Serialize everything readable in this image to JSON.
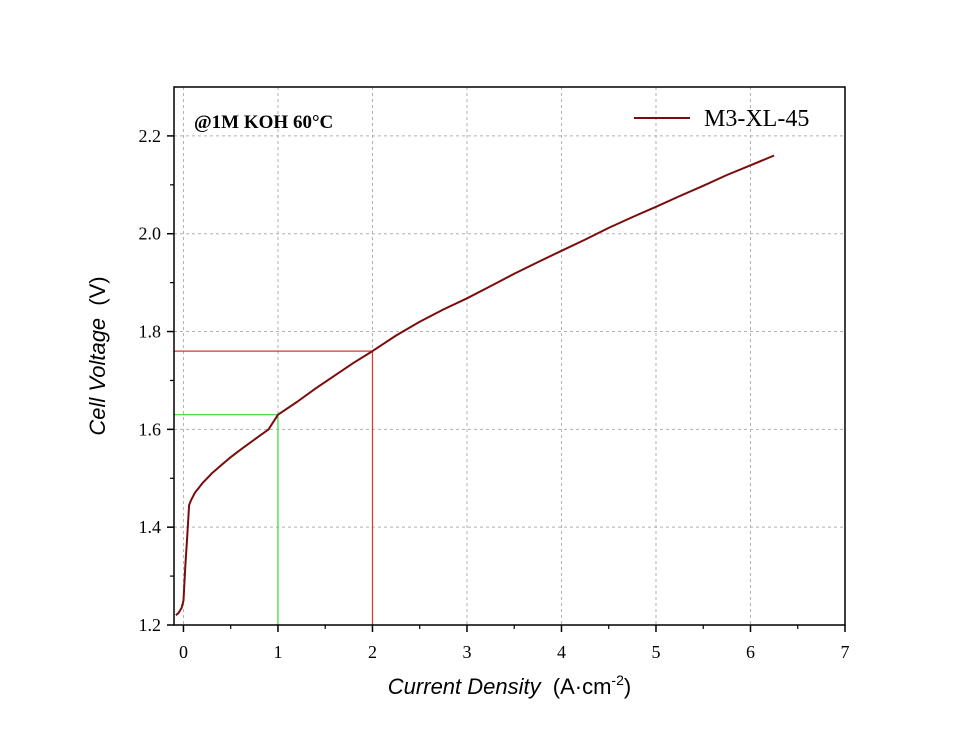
{
  "chart_data": {
    "type": "line",
    "xlabel_italic": "Current Density",
    "xlabel_unit_prefix": "(A·cm",
    "xlabel_unit_sup": "-2",
    "xlabel_unit_suffix": ")",
    "ylabel_italic": "Cell Voltage",
    "ylabel_unit": "(V)",
    "xlim": [
      -0.1,
      7
    ],
    "ylim": [
      1.2,
      2.3
    ],
    "xticks": [
      0,
      1,
      2,
      3,
      4,
      5,
      6,
      7
    ],
    "yticks": [
      1.2,
      1.4,
      1.6,
      1.8,
      2.0,
      2.2
    ],
    "xtick_labels": [
      "0",
      "1",
      "2",
      "3",
      "4",
      "5",
      "6",
      "7"
    ],
    "ytick_labels": [
      "1.2",
      "1.4",
      "1.6",
      "1.8",
      "2.0",
      "2.2"
    ],
    "grid": true,
    "legend_position": "top-right",
    "annotation": "@1M KOH  60°C",
    "series": [
      {
        "name": "M3-XL-45",
        "color": "#7a0c0c",
        "x": [
          -0.08,
          -0.05,
          -0.02,
          0.0,
          0.02,
          0.04,
          0.06,
          0.08,
          0.12,
          0.16,
          0.2,
          0.25,
          0.3,
          0.4,
          0.5,
          0.6,
          0.7,
          0.8,
          0.9,
          1.0,
          1.2,
          1.4,
          1.6,
          1.8,
          2.0,
          2.25,
          2.5,
          2.75,
          3.0,
          3.25,
          3.5,
          3.75,
          4.0,
          4.25,
          4.5,
          4.75,
          5.0,
          5.25,
          5.5,
          5.75,
          6.0,
          6.25
        ],
        "y": [
          1.22,
          1.225,
          1.235,
          1.25,
          1.32,
          1.38,
          1.445,
          1.455,
          1.47,
          1.48,
          1.49,
          1.5,
          1.51,
          1.527,
          1.543,
          1.558,
          1.572,
          1.586,
          1.6,
          1.63,
          1.656,
          1.684,
          1.71,
          1.736,
          1.76,
          1.792,
          1.82,
          1.845,
          1.868,
          1.893,
          1.918,
          1.942,
          1.965,
          1.988,
          2.012,
          2.034,
          2.055,
          2.077,
          2.098,
          2.12,
          2.14,
          2.16
        ]
      }
    ],
    "markers": [
      {
        "x": 1,
        "y": 1.63,
        "color": "#33dd33"
      },
      {
        "x": 2,
        "y": 1.76,
        "color": "#dd3333"
      }
    ]
  }
}
